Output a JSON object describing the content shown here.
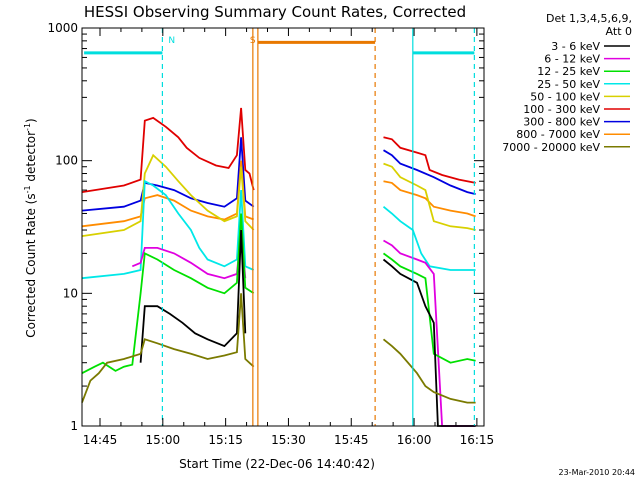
{
  "chart_data": {
    "type": "line",
    "title": "HESSI Observing Summary Count Rates, Corrected",
    "xlabel": "Start Time (22-Dec-06 14:40:42)",
    "ylabel_main": "Corrected Count Rate (s",
    "ylabel_sup1": "-1",
    "ylabel_mid": " detector",
    "ylabel_sup2": "-1",
    "ylabel_end": ")",
    "timestamp": "23-Mar-2010 20:44",
    "xlim": [
      0,
      96
    ],
    "ylim": [
      1,
      1000
    ],
    "y_scale": "log",
    "x_ticks": [
      {
        "label": "14:45",
        "minute": 4.3
      },
      {
        "label": "15:00",
        "minute": 19.3
      },
      {
        "label": "15:15",
        "minute": 34.3
      },
      {
        "label": "15:30",
        "minute": 49.3
      },
      {
        "label": "15:45",
        "minute": 64.3
      },
      {
        "label": "16:00",
        "minute": 79.3
      },
      {
        "label": "16:15",
        "minute": 94.3
      }
    ],
    "y_ticks": [
      {
        "label": "1",
        "value": 1
      },
      {
        "label": "10",
        "value": 10
      },
      {
        "label": "100",
        "value": 100
      },
      {
        "label": "1000",
        "value": 1000
      }
    ],
    "legend": {
      "position": "right",
      "header1": "Det 1,3,4,5,6,9,",
      "header2": "Att 0",
      "entries": [
        {
          "label": "3 - 6 keV",
          "color": "#000000"
        },
        {
          "label": "6 - 12 keV",
          "color": "#e000e0"
        },
        {
          "label": "12 - 25 keV",
          "color": "#00e000"
        },
        {
          "label": "25 - 50 keV",
          "color": "#00e8e8"
        },
        {
          "label": "50 - 100 keV",
          "color": "#d8d000"
        },
        {
          "label": "100 - 300 keV",
          "color": "#e00000"
        },
        {
          "label": "300 - 800 keV",
          "color": "#0000e0"
        },
        {
          "label": "800 - 7000 keV",
          "color": "#ff8c00"
        },
        {
          "label": "7000 - 20000 keV",
          "color": "#7a7a00"
        }
      ]
    },
    "markers": [
      {
        "label": "N",
        "color": "#00dede",
        "minute": 19.2,
        "style": "dashed"
      },
      {
        "label": "S",
        "color": "#e87800",
        "minute": 42.0,
        "style": "solid"
      }
    ],
    "series": [
      {
        "color": "#e00000",
        "points": [
          [
            0,
            58
          ],
          [
            10,
            65
          ],
          [
            14,
            72
          ],
          [
            15,
            200
          ],
          [
            17,
            210
          ],
          [
            20,
            180
          ],
          [
            23,
            150
          ],
          [
            25,
            125
          ],
          [
            28,
            105
          ],
          [
            32,
            92
          ],
          [
            35,
            88
          ],
          [
            37,
            110
          ],
          [
            38,
            250
          ],
          [
            39,
            85
          ],
          [
            40,
            80
          ],
          [
            41,
            60
          ]
        ],
        "points2": [
          [
            72,
            150
          ],
          [
            74,
            145
          ],
          [
            76,
            125
          ],
          [
            80,
            115
          ],
          [
            82,
            110
          ],
          [
            83,
            85
          ],
          [
            86,
            78
          ],
          [
            90,
            72
          ],
          [
            94,
            68
          ]
        ]
      },
      {
        "color": "#0000e0",
        "points": [
          [
            0,
            42
          ],
          [
            10,
            45
          ],
          [
            14,
            50
          ],
          [
            15,
            68
          ],
          [
            18,
            65
          ],
          [
            22,
            60
          ],
          [
            26,
            52
          ],
          [
            30,
            48
          ],
          [
            34,
            45
          ],
          [
            37,
            52
          ],
          [
            38,
            150
          ],
          [
            39,
            50
          ],
          [
            41,
            45
          ]
        ],
        "points2": [
          [
            72,
            120
          ],
          [
            74,
            110
          ],
          [
            76,
            95
          ],
          [
            80,
            85
          ],
          [
            84,
            75
          ],
          [
            88,
            65
          ],
          [
            92,
            58
          ],
          [
            94,
            56
          ]
        ]
      },
      {
        "color": "#ff8c00",
        "points": [
          [
            0,
            32
          ],
          [
            10,
            35
          ],
          [
            14,
            38
          ],
          [
            15,
            52
          ],
          [
            18,
            55
          ],
          [
            22,
            50
          ],
          [
            26,
            42
          ],
          [
            30,
            38
          ],
          [
            34,
            36
          ],
          [
            37,
            40
          ],
          [
            38,
            100
          ],
          [
            39,
            38
          ],
          [
            41,
            36
          ]
        ],
        "points2": [
          [
            72,
            70
          ],
          [
            74,
            68
          ],
          [
            76,
            60
          ],
          [
            80,
            55
          ],
          [
            82,
            52
          ],
          [
            84,
            45
          ],
          [
            88,
            42
          ],
          [
            92,
            40
          ],
          [
            94,
            38
          ]
        ]
      },
      {
        "color": "#d8d000",
        "points": [
          [
            0,
            27
          ],
          [
            10,
            30
          ],
          [
            14,
            35
          ],
          [
            15,
            80
          ],
          [
            17,
            110
          ],
          [
            20,
            90
          ],
          [
            23,
            70
          ],
          [
            26,
            55
          ],
          [
            30,
            42
          ],
          [
            34,
            35
          ],
          [
            37,
            38
          ],
          [
            38,
            90
          ],
          [
            39,
            35
          ],
          [
            41,
            30
          ]
        ],
        "points2": [
          [
            72,
            95
          ],
          [
            74,
            90
          ],
          [
            76,
            75
          ],
          [
            80,
            65
          ],
          [
            82,
            60
          ],
          [
            84,
            35
          ],
          [
            88,
            32
          ],
          [
            92,
            31
          ],
          [
            94,
            30
          ]
        ]
      },
      {
        "color": "#00e8e8",
        "points": [
          [
            0,
            13
          ],
          [
            10,
            14
          ],
          [
            14,
            15
          ],
          [
            15,
            70
          ],
          [
            17,
            65
          ],
          [
            20,
            55
          ],
          [
            23,
            40
          ],
          [
            26,
            30
          ],
          [
            28,
            22
          ],
          [
            30,
            18
          ],
          [
            34,
            16
          ],
          [
            37,
            18
          ],
          [
            38,
            60
          ],
          [
            39,
            16
          ],
          [
            41,
            15
          ]
        ],
        "points2": [
          [
            72,
            45
          ],
          [
            74,
            40
          ],
          [
            76,
            35
          ],
          [
            79,
            30
          ],
          [
            81,
            20
          ],
          [
            83,
            16
          ],
          [
            88,
            15
          ],
          [
            94,
            15
          ]
        ]
      },
      {
        "color": "#e000e0",
        "points": [
          [
            12,
            16
          ],
          [
            14,
            17
          ],
          [
            15,
            22
          ],
          [
            18,
            22
          ],
          [
            22,
            20
          ],
          [
            26,
            17
          ],
          [
            30,
            14
          ],
          [
            34,
            13
          ],
          [
            37,
            14
          ],
          [
            38,
            30
          ],
          [
            39,
            13
          ]
        ],
        "points2": [
          [
            72,
            25
          ],
          [
            74,
            23
          ],
          [
            76,
            20
          ],
          [
            80,
            18
          ],
          [
            82,
            17
          ],
          [
            84,
            14
          ],
          [
            86,
            1
          ],
          [
            94,
            1
          ]
        ]
      },
      {
        "color": "#00e000",
        "points": [
          [
            0,
            2.5
          ],
          [
            3,
            2.8
          ],
          [
            5,
            3.0
          ],
          [
            8,
            2.6
          ],
          [
            10,
            2.8
          ],
          [
            12,
            2.9
          ],
          [
            14,
            10
          ],
          [
            15,
            20
          ],
          [
            18,
            18
          ],
          [
            22,
            15
          ],
          [
            26,
            13
          ],
          [
            30,
            11
          ],
          [
            34,
            10
          ],
          [
            37,
            12
          ],
          [
            38,
            40
          ],
          [
            39,
            11
          ],
          [
            41,
            10
          ]
        ],
        "points2": [
          [
            72,
            20
          ],
          [
            74,
            18
          ],
          [
            76,
            16
          ],
          [
            80,
            14
          ],
          [
            82,
            13
          ],
          [
            84,
            3.5
          ],
          [
            88,
            3.0
          ],
          [
            92,
            3.2
          ],
          [
            94,
            3.1
          ]
        ]
      },
      {
        "color": "#000000",
        "points": [
          [
            14,
            3
          ],
          [
            15,
            8
          ],
          [
            18,
            8
          ],
          [
            21,
            7
          ],
          [
            24,
            6
          ],
          [
            27,
            5
          ],
          [
            30,
            4.5
          ],
          [
            34,
            4
          ],
          [
            37,
            5
          ],
          [
            38,
            30
          ],
          [
            39,
            5
          ]
        ],
        "points2": [
          [
            72,
            18
          ],
          [
            74,
            16
          ],
          [
            76,
            14
          ],
          [
            80,
            12
          ],
          [
            82,
            8
          ],
          [
            84,
            6
          ],
          [
            85,
            1
          ],
          [
            94,
            1
          ]
        ]
      },
      {
        "color": "#7a7a00",
        "points": [
          [
            0,
            1.5
          ],
          [
            2,
            2.2
          ],
          [
            4,
            2.5
          ],
          [
            6,
            3.0
          ],
          [
            10,
            3.2
          ],
          [
            14,
            3.5
          ],
          [
            15,
            4.5
          ],
          [
            18,
            4.2
          ],
          [
            22,
            3.8
          ],
          [
            26,
            3.5
          ],
          [
            30,
            3.2
          ],
          [
            34,
            3.4
          ],
          [
            37,
            3.6
          ],
          [
            38,
            10
          ],
          [
            39,
            3.2
          ],
          [
            41,
            2.8
          ]
        ],
        "points2": [
          [
            72,
            4.5
          ],
          [
            74,
            4
          ],
          [
            76,
            3.5
          ],
          [
            80,
            2.5
          ],
          [
            82,
            2
          ],
          [
            84,
            1.8
          ],
          [
            88,
            1.6
          ],
          [
            92,
            1.5
          ],
          [
            94,
            1.5
          ]
        ]
      }
    ],
    "observing_bars": [
      {
        "color": "#00dede",
        "y": 650,
        "x_start": 0.5,
        "x_end": 19.2
      },
      {
        "color": "#e87800",
        "y": 780,
        "x_start": 42.0,
        "x_end": 70.0
      },
      {
        "color": "#00dede",
        "y": 650,
        "x_start": 79.0,
        "x_end": 93.7
      }
    ],
    "vlines": [
      {
        "color": "#00dede",
        "minute": 19.2,
        "dashed": true
      },
      {
        "color": "#00dede",
        "minute": 79.0,
        "dashed": false
      },
      {
        "color": "#00dede",
        "minute": 93.7,
        "dashed": true
      },
      {
        "color": "#e87800",
        "minute": 40.8,
        "dashed": false
      },
      {
        "color": "#e87800",
        "minute": 42.0,
        "dashed": false
      },
      {
        "color": "#e87800",
        "minute": 70.0,
        "dashed": true
      }
    ]
  }
}
